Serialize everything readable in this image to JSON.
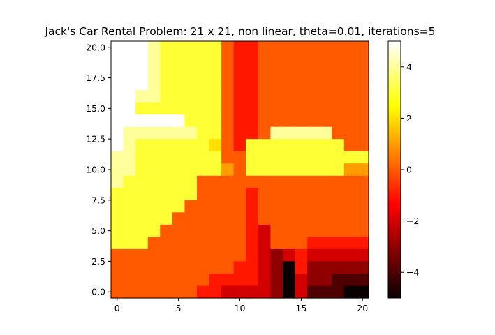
{
  "chart_data": {
    "type": "heatmap",
    "title": "Jack's Car Rental Problem: 21 x 21, non linear, theta=0.01, iterations=5",
    "xlabel": "",
    "ylabel": "",
    "x_ticks": [
      "0",
      "5",
      "10",
      "15",
      "20"
    ],
    "y_ticks": [
      "0.0",
      "2.5",
      "5.0",
      "7.5",
      "10.0",
      "12.5",
      "15.0",
      "17.5",
      "20.0"
    ],
    "xlim": [
      -0.5,
      20.5
    ],
    "ylim": [
      -0.5,
      20.5
    ],
    "colormap": "hot",
    "colorbar": {
      "range": [
        -5,
        5
      ],
      "ticks": [
        "4",
        "2",
        "0",
        "−2",
        "−4"
      ]
    },
    "grid": false,
    "rows_top_to_bottom": [
      [
        5,
        5,
        5,
        4,
        3,
        3,
        3,
        3,
        3,
        0,
        -1,
        -1,
        0,
        0,
        0,
        0,
        0,
        0,
        0,
        0,
        0
      ],
      [
        5,
        5,
        5,
        4,
        3,
        3,
        3,
        3,
        3,
        0,
        -1,
        -1,
        0,
        0,
        0,
        0,
        0,
        0,
        0,
        0,
        0
      ],
      [
        5,
        5,
        5,
        4,
        3,
        3,
        3,
        3,
        3,
        0,
        -1,
        -1,
        0,
        0,
        0,
        0,
        0,
        0,
        0,
        0,
        0
      ],
      [
        5,
        5,
        5,
        4,
        3,
        3,
        3,
        3,
        3,
        0,
        -1,
        -1,
        0,
        0,
        0,
        0,
        0,
        0,
        0,
        0,
        0
      ],
      [
        5,
        5,
        4,
        4,
        3,
        3,
        3,
        3,
        3,
        0,
        -1,
        -1,
        0,
        0,
        0,
        0,
        0,
        0,
        0,
        0,
        0
      ],
      [
        5,
        5,
        3,
        3,
        3,
        3,
        3,
        3,
        3,
        0,
        -1,
        -1,
        0,
        0,
        0,
        0,
        0,
        0,
        0,
        0,
        0
      ],
      [
        5,
        5,
        5,
        5,
        5,
        5,
        3,
        3,
        3,
        0,
        -1,
        -1,
        0,
        0,
        0,
        0,
        0,
        0,
        0,
        0,
        0
      ],
      [
        5,
        4,
        4,
        4,
        4,
        4,
        4,
        3,
        3,
        0,
        -1,
        -1,
        0,
        4,
        4,
        4,
        4,
        4,
        0,
        0,
        0
      ],
      [
        5,
        4,
        3,
        3,
        3,
        3,
        3,
        3,
        2,
        0,
        -1,
        3,
        3,
        3,
        3,
        3,
        3,
        3,
        3,
        0,
        0
      ],
      [
        4,
        4,
        3,
        3,
        3,
        3,
        3,
        3,
        3,
        0,
        0,
        3,
        3,
        3,
        3,
        3,
        3,
        3,
        3,
        3,
        3
      ],
      [
        4,
        4,
        3,
        3,
        3,
        3,
        3,
        3,
        3,
        1,
        0,
        3,
        3,
        3,
        3,
        3,
        3,
        3,
        3,
        1,
        1
      ],
      [
        4,
        3,
        3,
        3,
        3,
        3,
        3,
        0,
        0,
        0,
        0,
        0,
        0,
        0,
        0,
        0,
        0,
        0,
        0,
        0,
        0
      ],
      [
        3,
        3,
        3,
        3,
        3,
        3,
        3,
        0,
        0,
        0,
        0,
        -1,
        0,
        0,
        0,
        0,
        0,
        0,
        0,
        0,
        0
      ],
      [
        3,
        3,
        3,
        3,
        3,
        3,
        0,
        0,
        0,
        0,
        0,
        -1,
        0,
        0,
        0,
        0,
        0,
        0,
        0,
        0,
        0
      ],
      [
        3,
        3,
        3,
        3,
        3,
        0,
        0,
        0,
        0,
        0,
        0,
        -1,
        0,
        0,
        0,
        0,
        0,
        0,
        0,
        0,
        0
      ],
      [
        3,
        3,
        3,
        3,
        0,
        0,
        0,
        0,
        0,
        0,
        0,
        -1,
        -2,
        0,
        0,
        0,
        0,
        0,
        0,
        0,
        0
      ],
      [
        3,
        3,
        3,
        0,
        0,
        0,
        0,
        0,
        0,
        0,
        0,
        -1,
        -2,
        0,
        0,
        0,
        -1,
        -1,
        -1,
        -1,
        -1
      ],
      [
        0,
        0,
        0,
        0,
        0,
        0,
        0,
        0,
        0,
        0,
        0,
        -1,
        -2,
        -3,
        -2,
        -1,
        -2,
        -2,
        -2,
        -2,
        -2
      ],
      [
        0,
        0,
        0,
        0,
        0,
        0,
        0,
        0,
        0,
        0,
        -1,
        -1,
        -2,
        -3,
        -5,
        -1,
        -3,
        -3,
        -3,
        -3,
        -3
      ],
      [
        0,
        0,
        0,
        0,
        0,
        0,
        0,
        0,
        -1,
        -1,
        -1,
        -1,
        -2,
        -3,
        -5,
        -2,
        -3,
        -3,
        -4,
        -4,
        -4
      ],
      [
        0,
        0,
        0,
        0,
        0,
        0,
        0,
        -1,
        -1,
        -2,
        -2,
        -2,
        -2,
        -3,
        -5,
        -2,
        -4,
        -4,
        -4,
        -5,
        -5
      ]
    ]
  }
}
